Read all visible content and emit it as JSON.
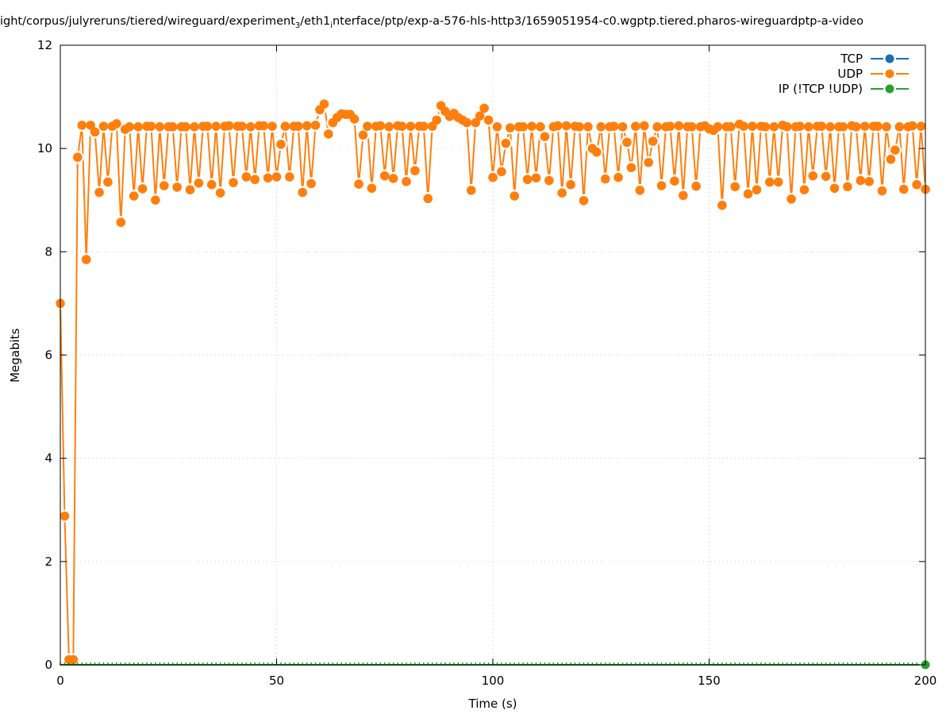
{
  "title_parts": {
    "a": "ight/corpus/julyreruns/tiered/wireguard/experiment",
    "a_sub": "3",
    "b": "/eth1",
    "b_sub": "i",
    "c": "nterface/ptp/exp-a-576-hls-http3/1659051954-c0.wgptp.tiered.pharos-wireguardptp-a-video"
  },
  "chart_data": {
    "type": "line",
    "xlabel": "Time (s)",
    "ylabel": "Megabits",
    "xlim": [
      0,
      200
    ],
    "ylim": [
      0,
      12
    ],
    "xticks": [
      0,
      50,
      100,
      150,
      200
    ],
    "yticks": [
      0,
      2,
      4,
      6,
      8,
      10,
      12
    ],
    "grid": true,
    "legend_position": "top-right",
    "x_start": 0,
    "x_step": 1,
    "series": [
      {
        "name": "TCP",
        "color": "#1a6db5",
        "values": []
      },
      {
        "name": "UDP",
        "color": "#ff7f0e",
        "values": [
          7.0,
          2.88,
          0.1,
          0.1,
          9.83,
          10.45,
          7.85,
          10.45,
          10.32,
          9.15,
          10.43,
          9.35,
          10.43,
          10.48,
          8.57,
          10.37,
          10.42,
          9.08,
          10.42,
          9.22,
          10.43,
          10.43,
          9.0,
          10.42,
          9.28,
          10.42,
          10.42,
          9.25,
          10.42,
          10.42,
          9.2,
          10.42,
          9.33,
          10.43,
          10.43,
          9.3,
          10.43,
          9.14,
          10.43,
          10.44,
          9.34,
          10.43,
          10.43,
          9.45,
          10.42,
          9.4,
          10.44,
          10.44,
          9.43,
          10.43,
          9.45,
          10.08,
          10.43,
          9.45,
          10.43,
          10.43,
          9.15,
          10.44,
          9.32,
          10.45,
          10.75,
          10.86,
          10.28,
          10.5,
          10.6,
          10.67,
          10.66,
          10.66,
          10.57,
          9.31,
          10.26,
          10.43,
          9.23,
          10.43,
          10.44,
          9.47,
          10.42,
          9.42,
          10.44,
          10.43,
          9.36,
          10.43,
          9.57,
          10.43,
          10.43,
          9.03,
          10.43,
          10.55,
          10.83,
          10.72,
          10.62,
          10.68,
          10.6,
          10.55,
          10.5,
          9.19,
          10.5,
          10.63,
          10.78,
          10.55,
          9.44,
          10.42,
          9.55,
          10.1,
          10.4,
          9.08,
          10.42,
          10.42,
          9.4,
          10.43,
          9.43,
          10.42,
          10.23,
          9.38,
          10.42,
          10.44,
          9.14,
          10.44,
          9.3,
          10.43,
          10.42,
          8.99,
          10.42,
          10.0,
          9.93,
          10.42,
          9.41,
          10.42,
          10.43,
          9.44,
          10.42,
          10.12,
          9.63,
          10.43,
          9.19,
          10.44,
          9.73,
          10.14,
          10.42,
          9.28,
          10.42,
          10.43,
          9.37,
          10.44,
          9.09,
          10.42,
          10.42,
          9.27,
          10.42,
          10.44,
          10.38,
          10.35,
          10.42,
          8.9,
          10.42,
          10.42,
          9.26,
          10.47,
          10.43,
          9.12,
          10.43,
          9.2,
          10.43,
          10.42,
          9.35,
          10.42,
          9.35,
          10.45,
          10.42,
          9.02,
          10.42,
          10.43,
          9.2,
          10.42,
          9.47,
          10.43,
          10.43,
          9.46,
          10.42,
          9.23,
          10.42,
          10.42,
          9.26,
          10.44,
          10.42,
          9.38,
          10.43,
          9.36,
          10.43,
          10.43,
          9.18,
          10.42,
          9.79,
          9.97,
          10.42,
          9.21,
          10.42,
          10.44,
          9.3,
          10.43,
          9.21
        ]
      },
      {
        "name": "IP (!TCP  !UDP)",
        "color": "#2ca02c",
        "values": [
          0,
          0,
          0,
          0,
          0,
          0,
          0,
          0,
          0,
          0,
          0,
          0,
          0,
          0,
          0,
          0,
          0,
          0,
          0,
          0,
          0,
          0,
          0,
          0,
          0,
          0,
          0,
          0,
          0,
          0,
          0,
          0,
          0,
          0,
          0,
          0,
          0,
          0,
          0,
          0,
          0,
          0,
          0,
          0,
          0,
          0,
          0,
          0,
          0,
          0,
          0,
          0,
          0,
          0,
          0,
          0,
          0,
          0,
          0,
          0,
          0,
          0,
          0,
          0,
          0,
          0,
          0,
          0,
          0,
          0,
          0,
          0,
          0,
          0,
          0,
          0,
          0,
          0,
          0,
          0,
          0,
          0,
          0,
          0,
          0,
          0,
          0,
          0,
          0,
          0,
          0,
          0,
          0,
          0,
          0,
          0,
          0,
          0,
          0,
          0,
          0,
          0,
          0,
          0,
          0,
          0,
          0,
          0,
          0,
          0,
          0,
          0,
          0,
          0,
          0,
          0,
          0,
          0,
          0,
          0,
          0,
          0,
          0,
          0,
          0,
          0,
          0,
          0,
          0,
          0,
          0,
          0,
          0,
          0,
          0,
          0,
          0,
          0,
          0,
          0,
          0,
          0,
          0,
          0,
          0,
          0,
          0,
          0,
          0,
          0,
          0,
          0,
          0,
          0,
          0,
          0,
          0,
          0,
          0,
          0,
          0,
          0,
          0,
          0,
          0,
          0,
          0,
          0,
          0,
          0,
          0,
          0,
          0,
          0,
          0,
          0,
          0,
          0,
          0,
          0,
          0,
          0,
          0,
          0,
          0,
          0,
          0,
          0,
          0,
          0,
          0,
          0,
          0,
          0,
          0,
          0,
          0,
          0,
          0,
          0,
          0
        ]
      }
    ]
  }
}
